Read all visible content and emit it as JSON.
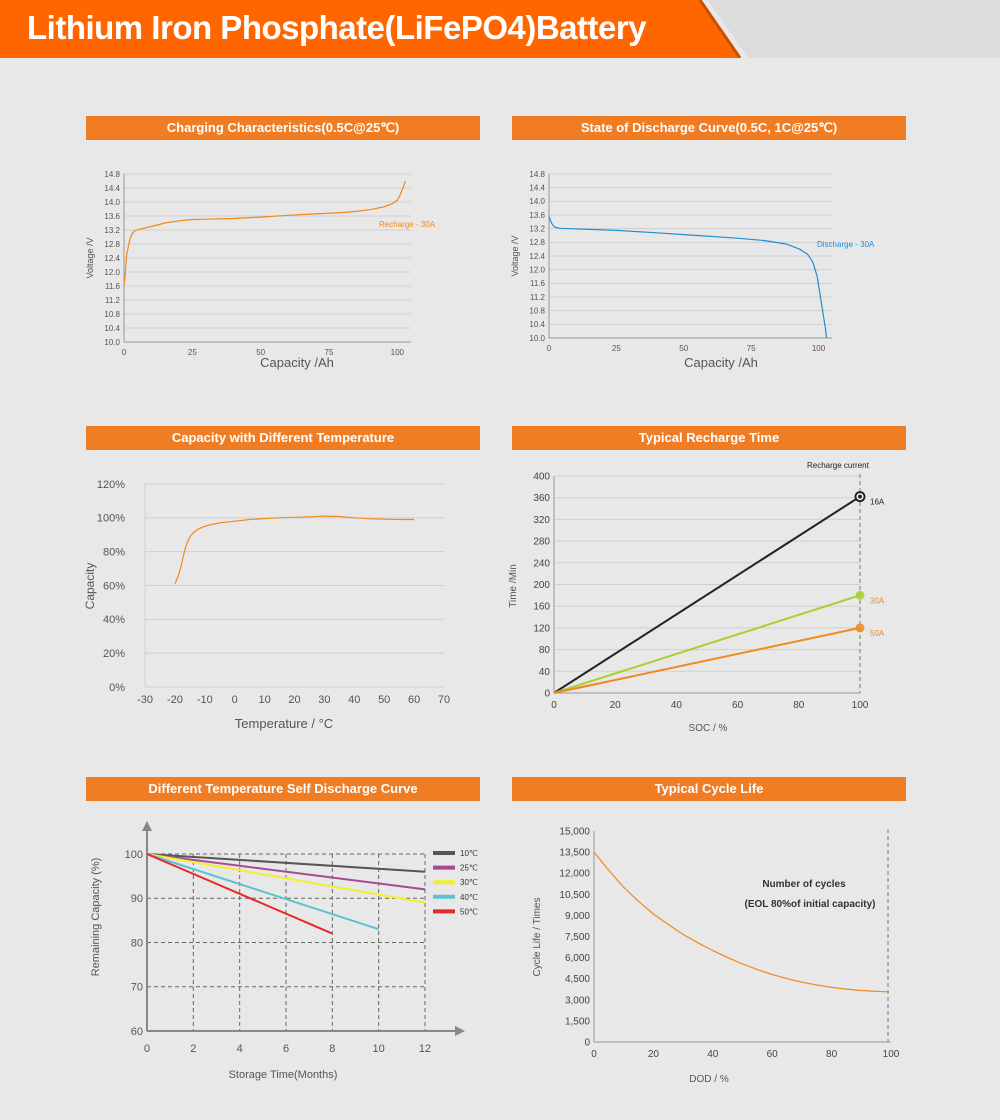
{
  "page": {
    "title": "Lithium Iron Phosphate(LiFePO4)Battery",
    "accent_color": "#f07d24",
    "banner_color": "#ff6600"
  },
  "chart_data": [
    {
      "id": "charging",
      "type": "line",
      "title": "Charging Characteristics(0.5C@25℃)",
      "xlabel": "Capacity  /Ah",
      "ylabel": "Voltage  /V",
      "xlim": [
        0,
        105
      ],
      "ylim": [
        10.0,
        14.8
      ],
      "xticks": [
        0,
        25,
        50,
        75,
        100
      ],
      "xtick_labels": [
        "0",
        "25",
        "50",
        "75",
        "100"
      ],
      "yticks": [
        10.0,
        10.4,
        10.8,
        11.2,
        11.6,
        12.0,
        12.4,
        12.8,
        13.2,
        13.6,
        14.0,
        14.4,
        14.8
      ],
      "ytick_labels": [
        "10.0",
        "10.4",
        "10.8",
        "11.2",
        "11.6",
        "12.0",
        "12.4",
        "12.8",
        "13.2",
        "13.6",
        "14.0",
        "14.4",
        "14.8"
      ],
      "grid": "horizontal",
      "series": [
        {
          "name": "Recharge - 30A",
          "color": "#f08a1e",
          "x": [
            0,
            0.5,
            1,
            2,
            3,
            4,
            6,
            10,
            15,
            20,
            25,
            30,
            40,
            50,
            60,
            70,
            80,
            85,
            90,
            95,
            98,
            100,
            101,
            102,
            103
          ],
          "y": [
            11.6,
            12.0,
            12.5,
            12.9,
            13.1,
            13.18,
            13.23,
            13.3,
            13.4,
            13.46,
            13.5,
            13.51,
            13.53,
            13.57,
            13.62,
            13.66,
            13.7,
            13.73,
            13.78,
            13.86,
            13.95,
            14.05,
            14.2,
            14.4,
            14.6
          ],
          "label_pos": "right"
        }
      ]
    },
    {
      "id": "discharge",
      "type": "line",
      "title": "State of Discharge Curve(0.5C, 1C@25℃)",
      "xlabel": "Capacity  /Ah",
      "ylabel": "Voltage  /V",
      "xlim": [
        0,
        105
      ],
      "ylim": [
        10.0,
        14.8
      ],
      "xticks": [
        0,
        25,
        50,
        75,
        100
      ],
      "xtick_labels": [
        "0",
        "25",
        "50",
        "75",
        "100"
      ],
      "yticks": [
        10.0,
        10.4,
        10.8,
        11.2,
        11.6,
        12.0,
        12.4,
        12.8,
        13.2,
        13.6,
        14.0,
        14.4,
        14.8
      ],
      "ytick_labels": [
        "10.0",
        "10.4",
        "10.8",
        "11.2",
        "11.6",
        "12.0",
        "12.4",
        "12.8",
        "13.2",
        "13.6",
        "14.0",
        "14.4",
        "14.8"
      ],
      "grid": "horizontal",
      "series": [
        {
          "name": "Discharge - 30A",
          "color": "#1f8fd0",
          "x": [
            0,
            0.5,
            1,
            2,
            4,
            8,
            15,
            25,
            40,
            55,
            70,
            80,
            88,
            93,
            96,
            98,
            99.5,
            100.5,
            101.5,
            102.5,
            103
          ],
          "y": [
            13.55,
            13.45,
            13.35,
            13.25,
            13.21,
            13.2,
            13.18,
            13.15,
            13.08,
            13.0,
            12.92,
            12.85,
            12.75,
            12.6,
            12.45,
            12.2,
            11.8,
            11.3,
            10.8,
            10.3,
            10.0
          ],
          "label_pos": "right"
        }
      ]
    },
    {
      "id": "temperature",
      "type": "line",
      "title": "Capacity with Different Temperature",
      "xlabel": "Temperature / °C",
      "ylabel": "Capacity",
      "xlim": [
        -30,
        70
      ],
      "ylim": [
        0,
        120
      ],
      "xticks": [
        -30,
        -20,
        -10,
        0,
        10,
        20,
        30,
        40,
        50,
        60,
        70
      ],
      "xtick_labels": [
        "-30",
        "-20",
        "-10",
        "0",
        "10",
        "20",
        "30",
        "40",
        "50",
        "60",
        "70"
      ],
      "yticks": [
        0,
        20,
        40,
        60,
        80,
        100,
        120
      ],
      "ytick_labels": [
        "0%",
        "20%",
        "40%",
        "60%",
        "80%",
        "100%",
        "120%"
      ],
      "grid": "horizontal",
      "series": [
        {
          "name": "",
          "color": "#f08a1e",
          "x": [
            -20,
            -19,
            -18,
            -17,
            -16,
            -15,
            -14,
            -12,
            -10,
            -8,
            -5,
            0,
            5,
            10,
            15,
            20,
            25,
            30,
            35,
            40,
            45,
            50,
            55,
            60
          ],
          "y": [
            61,
            65,
            71,
            79,
            85,
            88.5,
            91,
            93.5,
            95,
            96,
            97,
            98,
            99,
            99.5,
            100,
            100.3,
            100.6,
            101,
            100.8,
            100,
            99.5,
            99.2,
            99,
            99
          ]
        }
      ]
    },
    {
      "id": "recharge_time",
      "type": "line",
      "title": "Typical Recharge Time",
      "xlabel": "SOC / %",
      "ylabel": "Time /Min",
      "legend_title": "Recharge current",
      "xlim": [
        0,
        100
      ],
      "ylim": [
        0,
        400
      ],
      "xticks": [
        0,
        20,
        40,
        60,
        80,
        100
      ],
      "xtick_labels": [
        "0",
        "20",
        "40",
        "60",
        "80",
        "100"
      ],
      "yticks": [
        0,
        40,
        80,
        120,
        160,
        200,
        240,
        280,
        320,
        360,
        400
      ],
      "ytick_labels": [
        "0",
        "40",
        "80",
        "120",
        "160",
        "200",
        "240",
        "280",
        "320",
        "360",
        "400"
      ],
      "grid": "horizontal",
      "marker_line_x": 100,
      "series": [
        {
          "name": "16A",
          "color": "#222222",
          "label_color": "#222222",
          "x": [
            0,
            100
          ],
          "y": [
            0,
            362
          ]
        },
        {
          "name": "30A",
          "color": "#a6d130",
          "label_color": "#f08a1e",
          "x": [
            0,
            100
          ],
          "y": [
            0,
            180
          ]
        },
        {
          "name": "50A",
          "color": "#f08a1e",
          "label_color": "#f08a1e",
          "x": [
            0,
            100
          ],
          "y": [
            0,
            120
          ]
        }
      ]
    },
    {
      "id": "self_discharge",
      "type": "line",
      "title": "Different Temperature Self Discharge Curve",
      "xlabel": "Storage Time(Months)",
      "ylabel": "Remaining Capacity (%)",
      "xlim": [
        0,
        12
      ],
      "ylim": [
        60,
        100
      ],
      "xticks": [
        0,
        2,
        4,
        6,
        8,
        10,
        12
      ],
      "xtick_labels": [
        "0",
        "2",
        "4",
        "6",
        "8",
        "10",
        "12"
      ],
      "yticks": [
        60,
        70,
        80,
        90,
        100
      ],
      "ytick_labels": [
        "60",
        "70",
        "80",
        "90",
        "100"
      ],
      "grid": "dashed",
      "legend": "right",
      "series": [
        {
          "name": "10℃",
          "color": "#555555",
          "x": [
            0,
            12
          ],
          "y": [
            100,
            96
          ]
        },
        {
          "name": "25℃",
          "color": "#a84a8f",
          "x": [
            0,
            12
          ],
          "y": [
            100,
            92
          ]
        },
        {
          "name": "30℃",
          "color": "#f3f02a",
          "x": [
            0,
            12
          ],
          "y": [
            100,
            89
          ]
        },
        {
          "name": "40℃",
          "color": "#5fbfd3",
          "x": [
            0,
            10
          ],
          "y": [
            100,
            83
          ]
        },
        {
          "name": "50℃",
          "color": "#e52a2a",
          "x": [
            0,
            8
          ],
          "y": [
            100,
            82
          ]
        }
      ]
    },
    {
      "id": "cycle_life",
      "type": "line",
      "title": "Typical Cycle Life",
      "xlabel": "DOD / %",
      "ylabel": "Cycle Life / Times",
      "annotation_line1": "Number of cycles",
      "annotation_line2": "(EOL 80%of initial capacity)",
      "xlim": [
        0,
        100
      ],
      "ylim": [
        0,
        15000
      ],
      "xticks": [
        0,
        20,
        40,
        60,
        80,
        100
      ],
      "xtick_labels": [
        "0",
        "20",
        "40",
        "60",
        "80",
        "100"
      ],
      "yticks": [
        0,
        1500,
        3000,
        4500,
        6000,
        7500,
        9000,
        10500,
        12000,
        13500,
        15000
      ],
      "ytick_labels": [
        "0",
        "1,500",
        "3,000",
        "4,500",
        "6,000",
        "7,500",
        "9,000",
        "10,500",
        "12,000",
        "13,500",
        "15,000"
      ],
      "grid": "none",
      "marker_line_x": 99,
      "series": [
        {
          "name": "",
          "color": "#f08a1e",
          "x": [
            0,
            5,
            10,
            15,
            20,
            25,
            30,
            35,
            40,
            45,
            50,
            55,
            60,
            65,
            70,
            75,
            80,
            85,
            90,
            95,
            99
          ],
          "y": [
            13500,
            12200,
            11000,
            10000,
            9100,
            8350,
            7650,
            7050,
            6500,
            6000,
            5550,
            5150,
            4800,
            4500,
            4250,
            4050,
            3880,
            3760,
            3660,
            3600,
            3570
          ]
        }
      ]
    }
  ]
}
